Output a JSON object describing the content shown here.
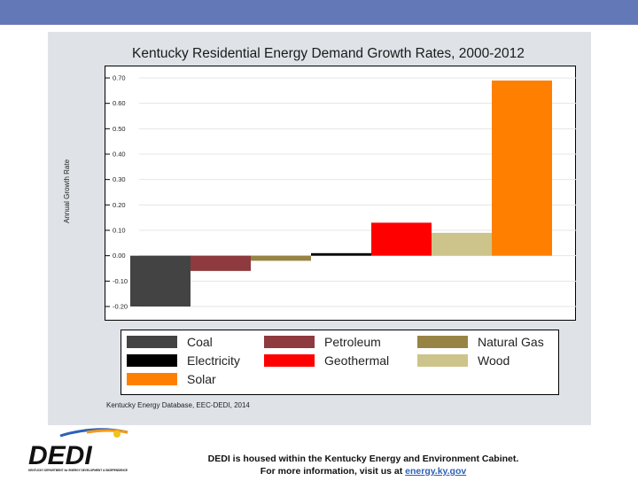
{
  "footer": {
    "line1": "DEDI is housed within the Kentucky Energy and Environment Cabinet.",
    "line2_prefix": "For more information, visit us at ",
    "link": "energy.ky.gov"
  },
  "logo": {
    "text": "DEDI",
    "subtitle": "KENTUCKY DEPARTMENT for ENERGY DEVELOPMENT & INDEPENDENCE"
  },
  "colors": {
    "top_bar": "#6379b7",
    "panel": "#dfe3e7"
  },
  "chart_data": {
    "type": "bar",
    "title": "Kentucky Residential Energy Demand Growth Rates, 2000-2012",
    "ylabel": "Annual Growth Rate",
    "xlabel": "",
    "ylim": [
      -0.2,
      0.7
    ],
    "yticks": [
      0.7,
      0.6,
      0.5,
      0.4,
      0.3,
      0.2,
      0.1,
      0.0,
      -0.1,
      -0.2
    ],
    "ytick_labels": [
      "0.70",
      "0.60",
      "0.50",
      "0.40",
      "0.30",
      "0.20",
      "0.10",
      "0.00",
      "-0.10",
      "-0.20"
    ],
    "categories": [
      "Coal",
      "Petroleum",
      "Natural Gas",
      "Electricity",
      "Geothermal",
      "Wood",
      "Solar"
    ],
    "values": [
      -0.2,
      -0.06,
      -0.02,
      0.01,
      0.13,
      0.09,
      0.69
    ],
    "colors": [
      "#434343",
      "#8e3a3e",
      "#978444",
      "#000000",
      "#ff0000",
      "#ccc48a",
      "#ff8000"
    ],
    "grid": true,
    "legend_position": "bottom",
    "source": "Kentucky Energy Database, EEC-DEDI, 2014"
  }
}
